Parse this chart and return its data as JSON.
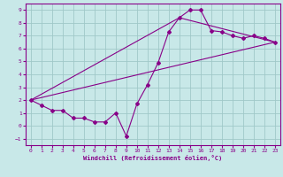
{
  "xlabel": "Windchill (Refroidissement éolien,°C)",
  "ylabel": "",
  "background_color": "#c8e8e8",
  "grid_color": "#a0c8c8",
  "line_color": "#880088",
  "xlim": [
    -0.5,
    23.5
  ],
  "ylim": [
    -1.5,
    9.5
  ],
  "xticks": [
    0,
    1,
    2,
    3,
    4,
    5,
    6,
    7,
    8,
    9,
    10,
    11,
    12,
    13,
    14,
    15,
    16,
    17,
    18,
    19,
    20,
    21,
    22,
    23
  ],
  "yticks": [
    -1,
    0,
    1,
    2,
    3,
    4,
    5,
    6,
    7,
    8,
    9
  ],
  "series1_x": [
    0,
    1,
    2,
    3,
    4,
    5,
    6,
    7,
    8,
    9,
    10,
    11,
    12,
    13,
    14,
    15,
    16,
    17,
    18,
    19,
    20,
    21,
    22,
    23
  ],
  "series1_y": [
    2.0,
    1.6,
    1.2,
    1.2,
    0.6,
    0.6,
    0.3,
    0.3,
    1.0,
    -0.8,
    1.7,
    3.2,
    4.9,
    7.3,
    8.4,
    9.0,
    9.0,
    7.4,
    7.3,
    7.0,
    6.8,
    7.0,
    6.8,
    6.5
  ],
  "series2_x": [
    0,
    23
  ],
  "series2_y": [
    2.0,
    6.5
  ],
  "series3_x": [
    0,
    14,
    23
  ],
  "series3_y": [
    2.0,
    8.4,
    6.5
  ]
}
